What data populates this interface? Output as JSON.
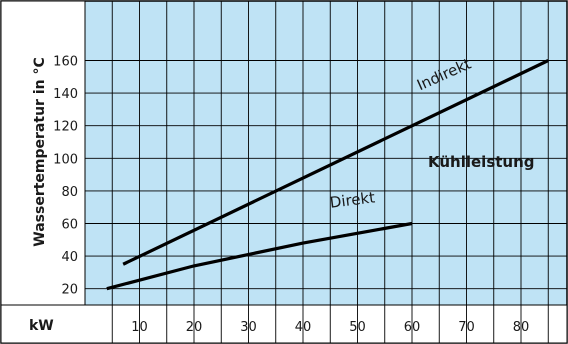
{
  "chart_data": {
    "type": "line",
    "ylabel": "Wassertemperatur in °C",
    "unit_label": "kW",
    "annotation": "Kühlleistung",
    "xlim": [
      0,
      85
    ],
    "ylim": [
      10,
      170
    ],
    "x_ticks": [
      10,
      20,
      30,
      40,
      50,
      60,
      70,
      80
    ],
    "y_ticks": [
      20,
      40,
      60,
      80,
      100,
      120,
      140,
      160
    ],
    "grid": true,
    "colors": {
      "background": "#bfe3f5",
      "grid": "#000000",
      "line": "#000000",
      "white": "#ffffff"
    },
    "series": [
      {
        "name": "Indirekt",
        "x": [
          7,
          85
        ],
        "y": [
          35,
          160
        ]
      },
      {
        "name": "Direkt",
        "x": [
          4,
          20,
          40,
          60
        ],
        "y": [
          20,
          34,
          48,
          60
        ]
      }
    ]
  }
}
